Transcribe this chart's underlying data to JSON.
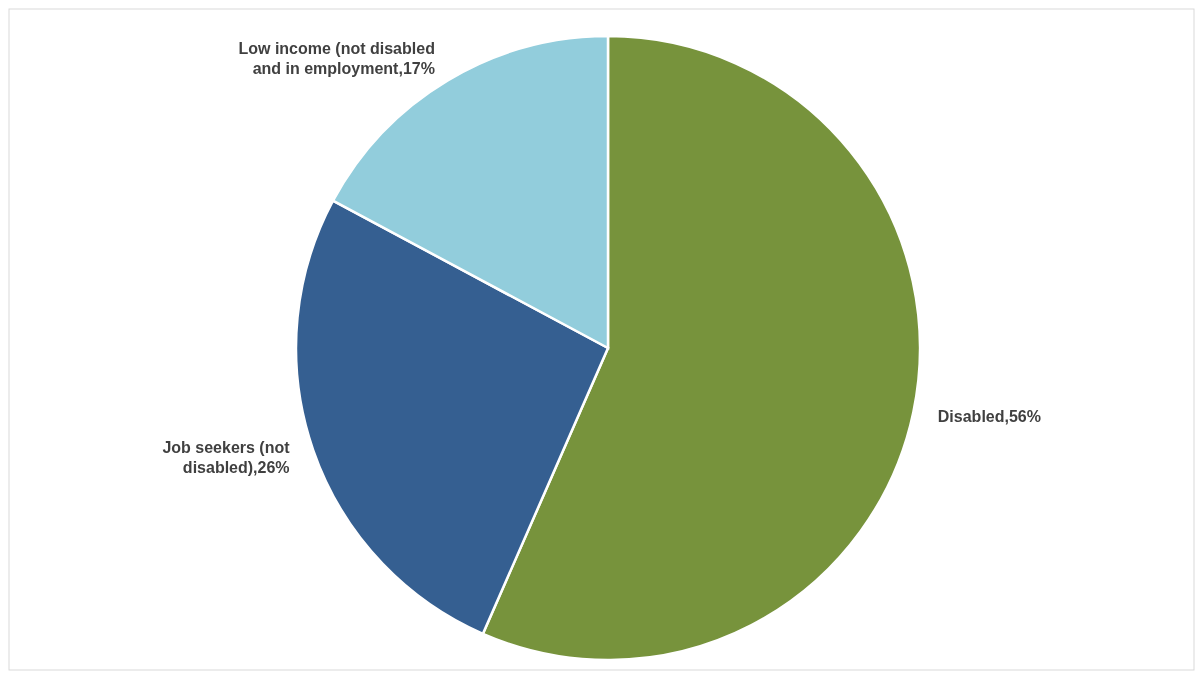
{
  "chart_data": {
    "type": "pie",
    "categories": [
      "Disabled",
      "Job seekers (not disabled)",
      "Low income (not disabled and in employment"
    ],
    "values": [
      56,
      26,
      17
    ],
    "value_labels": [
      "56%",
      "26%",
      "17%"
    ],
    "colors": [
      "#77933c",
      "#355f91",
      "#92cddc"
    ]
  }
}
